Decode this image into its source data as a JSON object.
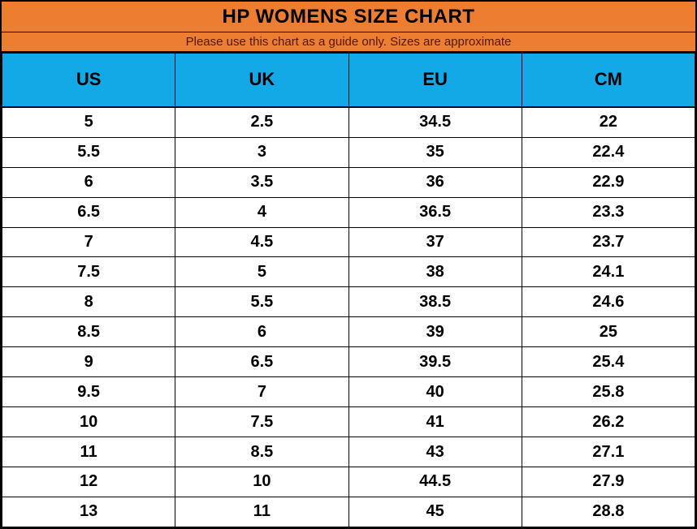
{
  "title": "HP WOMENS SIZE CHART",
  "subtitle": "Please use this chart as a guide only. Sizes are approximate",
  "colors": {
    "orange": "#ED7D31",
    "blue": "#12A9E6",
    "subtitle_text": "#511804",
    "border": "#000000",
    "cell_text": "#000000",
    "row_background": "#FFFFFF"
  },
  "chart_data": {
    "type": "table",
    "title": "HP WOMENS SIZE CHART",
    "subtitle": "Please use this chart as a guide only. Sizes are approximate",
    "columns": [
      "US",
      "UK",
      "EU",
      "CM"
    ],
    "rows": [
      [
        "5",
        "2.5",
        "34.5",
        "22"
      ],
      [
        "5.5",
        "3",
        "35",
        "22.4"
      ],
      [
        "6",
        "3.5",
        "36",
        "22.9"
      ],
      [
        "6.5",
        "4",
        "36.5",
        "23.3"
      ],
      [
        "7",
        "4.5",
        "37",
        "23.7"
      ],
      [
        "7.5",
        "5",
        "38",
        "24.1"
      ],
      [
        "8",
        "5.5",
        "38.5",
        "24.6"
      ],
      [
        "8.5",
        "6",
        "39",
        "25"
      ],
      [
        "9",
        "6.5",
        "39.5",
        "25.4"
      ],
      [
        "9.5",
        "7",
        "40",
        "25.8"
      ],
      [
        "10",
        "7.5",
        "41",
        "26.2"
      ],
      [
        "11",
        "8.5",
        "43",
        "27.1"
      ],
      [
        "12",
        "10",
        "44.5",
        "27.9"
      ],
      [
        "13",
        "11",
        "45",
        "28.8"
      ]
    ]
  }
}
